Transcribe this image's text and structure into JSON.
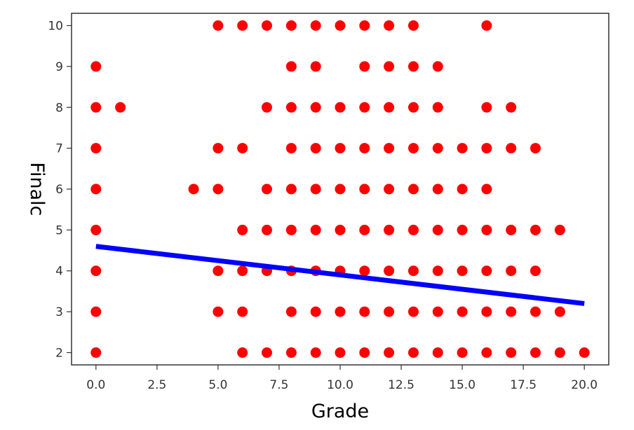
{
  "chart_data": {
    "type": "scatter",
    "title": "",
    "xlabel": "Grade",
    "ylabel": "Finalc",
    "xlim": [
      -1.0,
      21.0
    ],
    "ylim": [
      1.7,
      10.3
    ],
    "xticks": [
      0.0,
      2.5,
      5.0,
      7.5,
      10.0,
      12.5,
      15.0,
      17.5,
      20.0
    ],
    "xtick_labels": [
      "0.0",
      "2.5",
      "5.0",
      "7.5",
      "10.0",
      "12.5",
      "15.0",
      "17.5",
      "20.0"
    ],
    "yticks": [
      2,
      3,
      4,
      5,
      6,
      7,
      8,
      9,
      10
    ],
    "ytick_labels": [
      "2",
      "3",
      "4",
      "5",
      "6",
      "7",
      "8",
      "9",
      "10"
    ],
    "grid": false,
    "colors": {
      "points": "#ff0000",
      "line": "#0000ff",
      "axes": "#333333"
    },
    "series": [
      {
        "kind": "scatter",
        "points": [
          [
            0,
            9
          ],
          [
            0,
            8
          ],
          [
            0,
            7
          ],
          [
            0,
            6
          ],
          [
            0,
            5
          ],
          [
            0,
            4
          ],
          [
            0,
            3
          ],
          [
            0,
            2
          ],
          [
            1,
            8
          ],
          [
            4,
            6
          ],
          [
            5,
            10
          ],
          [
            5,
            7
          ],
          [
            5,
            6
          ],
          [
            5,
            4
          ],
          [
            5,
            3
          ],
          [
            6,
            10
          ],
          [
            6,
            7
          ],
          [
            6,
            5
          ],
          [
            6,
            4
          ],
          [
            6,
            3
          ],
          [
            6,
            2
          ],
          [
            7,
            10
          ],
          [
            7,
            8
          ],
          [
            7,
            6
          ],
          [
            7,
            5
          ],
          [
            7,
            4
          ],
          [
            7,
            2
          ],
          [
            8,
            10
          ],
          [
            8,
            9
          ],
          [
            8,
            8
          ],
          [
            8,
            7
          ],
          [
            8,
            6
          ],
          [
            8,
            5
          ],
          [
            8,
            4
          ],
          [
            8,
            3
          ],
          [
            8,
            2
          ],
          [
            9,
            10
          ],
          [
            9,
            9
          ],
          [
            9,
            8
          ],
          [
            9,
            7
          ],
          [
            9,
            6
          ],
          [
            9,
            5
          ],
          [
            9,
            4
          ],
          [
            9,
            3
          ],
          [
            9,
            2
          ],
          [
            10,
            10
          ],
          [
            10,
            8
          ],
          [
            10,
            7
          ],
          [
            10,
            6
          ],
          [
            10,
            5
          ],
          [
            10,
            4
          ],
          [
            10,
            3
          ],
          [
            10,
            2
          ],
          [
            11,
            10
          ],
          [
            11,
            9
          ],
          [
            11,
            8
          ],
          [
            11,
            7
          ],
          [
            11,
            6
          ],
          [
            11,
            5
          ],
          [
            11,
            4
          ],
          [
            11,
            3
          ],
          [
            11,
            2
          ],
          [
            12,
            10
          ],
          [
            12,
            9
          ],
          [
            12,
            8
          ],
          [
            12,
            7
          ],
          [
            12,
            6
          ],
          [
            12,
            5
          ],
          [
            12,
            4
          ],
          [
            12,
            3
          ],
          [
            12,
            2
          ],
          [
            13,
            10
          ],
          [
            13,
            9
          ],
          [
            13,
            8
          ],
          [
            13,
            7
          ],
          [
            13,
            6
          ],
          [
            13,
            5
          ],
          [
            13,
            4
          ],
          [
            13,
            3
          ],
          [
            13,
            2
          ],
          [
            14,
            9
          ],
          [
            14,
            8
          ],
          [
            14,
            7
          ],
          [
            14,
            6
          ],
          [
            14,
            5
          ],
          [
            14,
            4
          ],
          [
            14,
            3
          ],
          [
            14,
            2
          ],
          [
            15,
            7
          ],
          [
            15,
            6
          ],
          [
            15,
            5
          ],
          [
            15,
            4
          ],
          [
            15,
            3
          ],
          [
            15,
            2
          ],
          [
            16,
            10
          ],
          [
            16,
            8
          ],
          [
            16,
            7
          ],
          [
            16,
            6
          ],
          [
            16,
            5
          ],
          [
            16,
            4
          ],
          [
            16,
            3
          ],
          [
            16,
            2
          ],
          [
            17,
            8
          ],
          [
            17,
            7
          ],
          [
            17,
            5
          ],
          [
            17,
            4
          ],
          [
            17,
            3
          ],
          [
            17,
            2
          ],
          [
            18,
            7
          ],
          [
            18,
            5
          ],
          [
            18,
            4
          ],
          [
            18,
            3
          ],
          [
            18,
            2
          ],
          [
            19,
            5
          ],
          [
            19,
            3
          ],
          [
            19,
            2
          ],
          [
            20,
            2
          ]
        ]
      },
      {
        "kind": "line",
        "x": [
          0,
          20
        ],
        "y": [
          4.6,
          3.2
        ]
      }
    ]
  }
}
